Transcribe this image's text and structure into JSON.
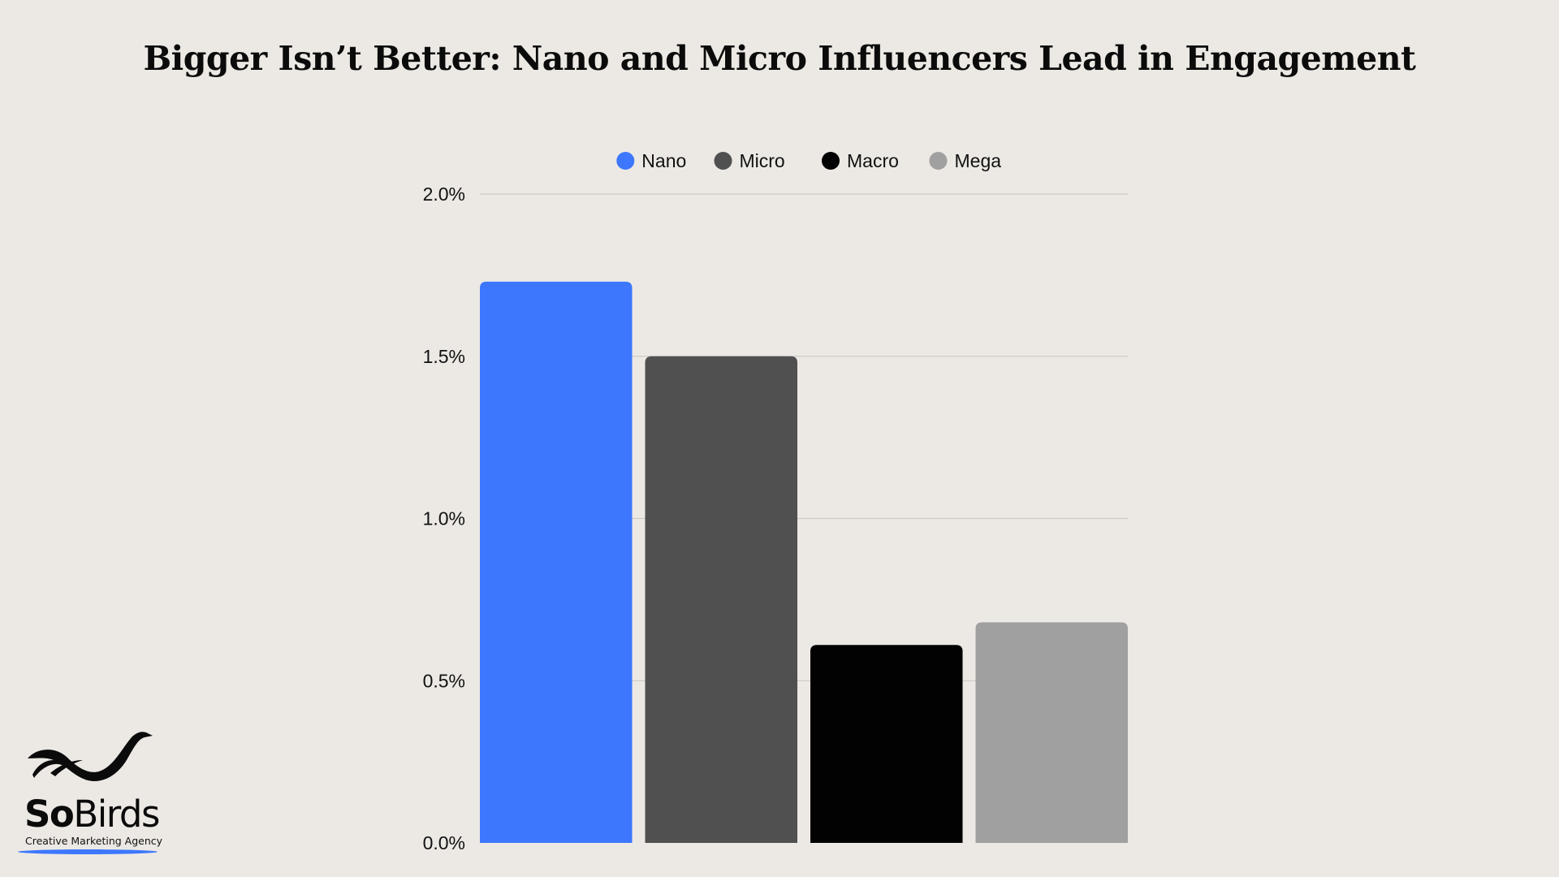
{
  "chart_data": {
    "type": "bar",
    "title": "Bigger Isn’t Better: Nano and Micro Influencers Lead in Engagement",
    "xlabel": "",
    "ylabel": "",
    "categories": [
      "Nano",
      "Micro",
      "Macro",
      "Mega"
    ],
    "values": [
      1.73,
      1.5,
      0.61,
      0.68
    ],
    "value_unit": "%",
    "colors": [
      "#3d77fe",
      "#505050",
      "#020202",
      "#a0a0a0"
    ],
    "ylim": [
      0,
      2.0
    ],
    "yticks": [
      0.0,
      0.5,
      1.0,
      1.5,
      2.0
    ],
    "ytick_labels": [
      "0.0%",
      "0.5%",
      "1.0%",
      "1.5%",
      "2.0%"
    ],
    "grid": true,
    "legend": {
      "placement": "top-center",
      "entries": [
        "Nano",
        "Micro",
        "Macro",
        "Mega"
      ]
    }
  },
  "logo": {
    "wordmark_bold": "So",
    "wordmark_light": "Birds",
    "tagline": "Creative Marketing Agency",
    "accent_color": "#3d77fe",
    "icon": "bird-icon"
  }
}
